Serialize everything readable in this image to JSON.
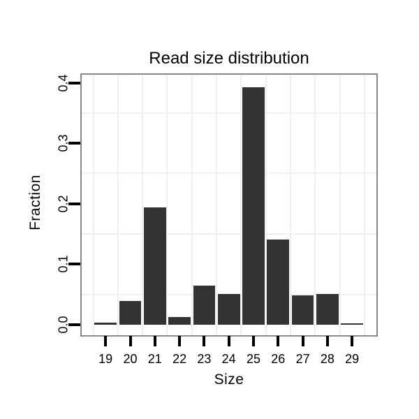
{
  "chart_data": {
    "type": "bar",
    "title": "Read size distribution",
    "xlabel": "Size",
    "ylabel": "Fraction",
    "categories": [
      19,
      20,
      21,
      22,
      23,
      24,
      25,
      26,
      27,
      28,
      29
    ],
    "values": [
      0.003,
      0.039,
      0.194,
      0.013,
      0.065,
      0.051,
      0.393,
      0.141,
      0.048,
      0.051,
      0.002
    ],
    "x_tick_labels": [
      "19",
      "20",
      "21",
      "22",
      "23",
      "24",
      "25",
      "26",
      "27",
      "28",
      "29"
    ],
    "y_tick_values": [
      0.0,
      0.1,
      0.2,
      0.3,
      0.4
    ],
    "y_tick_labels": [
      "0.0",
      "0.1",
      "0.2",
      "0.3",
      "0.4"
    ],
    "xlim": [
      18.0,
      30.0
    ],
    "ylim": [
      -0.017,
      0.413
    ],
    "grid": "minor-gridlines-only-at-half-positions",
    "legend": "none",
    "bar_color": "#333333",
    "grid_color": "#f0f0f0",
    "panel_border_color": "#888888",
    "tick_color": "#000000",
    "background_color": "#ffffff"
  }
}
